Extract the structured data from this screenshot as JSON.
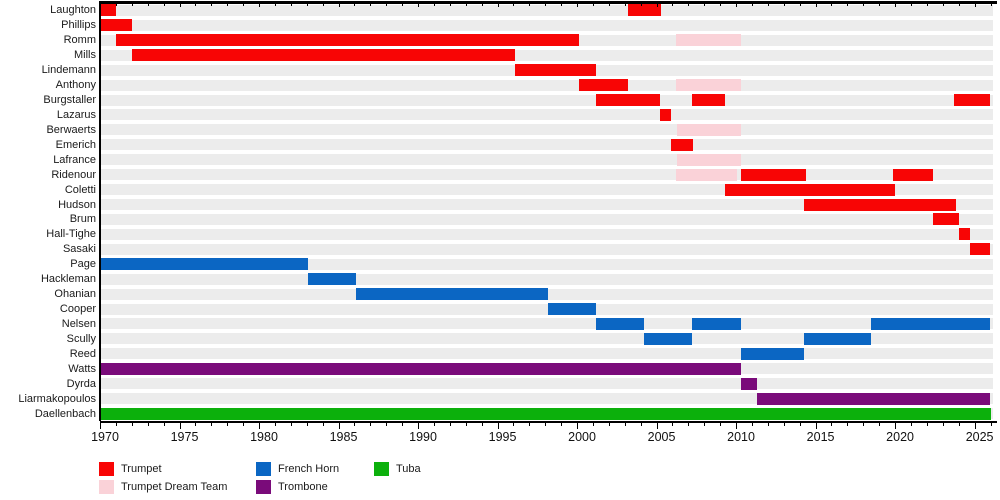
{
  "chart_data": {
    "type": "gantt-timeline",
    "description": "Brass quintet membership timeline by member and instrument",
    "x_axis": {
      "min": 1970,
      "max": 2026,
      "major_tick_step": 5,
      "minor_tick_step": 1,
      "tick_labels": [
        "1970",
        "1975",
        "1980",
        "1985",
        "1990",
        "1995",
        "2000",
        "2005",
        "2010",
        "2015",
        "2020",
        "2025"
      ],
      "grid": false
    },
    "colors": {
      "trumpet": "#f80505",
      "dream_team": "#fad2d8",
      "french_horn": "#0b66c3",
      "trombone": "#7a0b7a",
      "tuba": "#0cb00c"
    },
    "rows": [
      {
        "label": "Laughton",
        "segments": [
          {
            "start": 1970,
            "end": 1971,
            "role": "trumpet"
          },
          {
            "start": 2003.2,
            "end": 2005.3,
            "role": "trumpet"
          }
        ]
      },
      {
        "label": "Phillips",
        "segments": [
          {
            "start": 1970,
            "end": 1972,
            "role": "trumpet"
          }
        ]
      },
      {
        "label": "Romm",
        "segments": [
          {
            "start": 1971,
            "end": 2000.1,
            "role": "trumpet"
          },
          {
            "start": 2006.2,
            "end": 2010.3,
            "role": "dream_team"
          }
        ]
      },
      {
        "label": "Mills",
        "segments": [
          {
            "start": 1972,
            "end": 1996.1,
            "role": "trumpet"
          }
        ]
      },
      {
        "label": "Lindemann",
        "segments": [
          {
            "start": 1996.1,
            "end": 2001.2,
            "role": "trumpet"
          }
        ]
      },
      {
        "label": "Anthony",
        "segments": [
          {
            "start": 2000.1,
            "end": 2003.2,
            "role": "trumpet"
          },
          {
            "start": 2006.2,
            "end": 2010.3,
            "role": "dream_team"
          }
        ]
      },
      {
        "label": "Burgstaller",
        "segments": [
          {
            "start": 2001.2,
            "end": 2005.2,
            "role": "trumpet"
          },
          {
            "start": 2007.2,
            "end": 2009.3,
            "role": "trumpet"
          },
          {
            "start": 2023.7,
            "end": 2026,
            "role": "trumpet"
          }
        ]
      },
      {
        "label": "Lazarus",
        "segments": [
          {
            "start": 2005.2,
            "end": 2005.9,
            "role": "trumpet"
          }
        ]
      },
      {
        "label": "Berwaerts",
        "segments": [
          {
            "start": 2006.3,
            "end": 2010.3,
            "role": "dream_team"
          }
        ]
      },
      {
        "label": "Emerich",
        "segments": [
          {
            "start": 2005.9,
            "end": 2007.3,
            "role": "trumpet"
          }
        ]
      },
      {
        "label": "Lafrance",
        "segments": [
          {
            "start": 2006.3,
            "end": 2010.3,
            "role": "dream_team"
          }
        ]
      },
      {
        "label": "Ridenour",
        "segments": [
          {
            "start": 2006.2,
            "end": 2010.05,
            "role": "dream_team"
          },
          {
            "start": 2010.3,
            "end": 2014.4,
            "role": "trumpet"
          },
          {
            "start": 2019.9,
            "end": 2022.4,
            "role": "trumpet"
          }
        ]
      },
      {
        "label": "Coletti",
        "segments": [
          {
            "start": 2009.3,
            "end": 2020.0,
            "role": "trumpet"
          }
        ]
      },
      {
        "label": "Hudson",
        "segments": [
          {
            "start": 2014.3,
            "end": 2023.8,
            "role": "trumpet"
          }
        ]
      },
      {
        "label": "Brum",
        "segments": [
          {
            "start": 2022.4,
            "end": 2024.0,
            "role": "trumpet"
          }
        ]
      },
      {
        "label": "Hall-Tighe",
        "segments": [
          {
            "start": 2024.0,
            "end": 2024.7,
            "role": "trumpet"
          }
        ]
      },
      {
        "label": "Sasaki",
        "segments": [
          {
            "start": 2024.7,
            "end": 2026,
            "role": "trumpet"
          }
        ]
      },
      {
        "label": "Page",
        "segments": [
          {
            "start": 1970,
            "end": 1983.1,
            "role": "french_horn"
          }
        ]
      },
      {
        "label": "Hackleman",
        "segments": [
          {
            "start": 1983.1,
            "end": 1986.1,
            "role": "french_horn"
          }
        ]
      },
      {
        "label": "Ohanian",
        "segments": [
          {
            "start": 1986.1,
            "end": 1998.2,
            "role": "french_horn"
          }
        ]
      },
      {
        "label": "Cooper",
        "segments": [
          {
            "start": 1998.2,
            "end": 2001.2,
            "role": "french_horn"
          }
        ]
      },
      {
        "label": "Nelsen",
        "segments": [
          {
            "start": 2001.2,
            "end": 2004.2,
            "role": "french_horn"
          },
          {
            "start": 2007.2,
            "end": 2010.3,
            "role": "french_horn"
          },
          {
            "start": 2018.5,
            "end": 2026,
            "role": "french_horn"
          }
        ]
      },
      {
        "label": "Scully",
        "segments": [
          {
            "start": 2004.2,
            "end": 2007.2,
            "role": "french_horn"
          },
          {
            "start": 2014.3,
            "end": 2018.5,
            "role": "french_horn"
          }
        ]
      },
      {
        "label": "Reed",
        "segments": [
          {
            "start": 2010.3,
            "end": 2014.3,
            "role": "french_horn"
          }
        ]
      },
      {
        "label": "Watts",
        "segments": [
          {
            "start": 1970,
            "end": 2010.3,
            "role": "trombone"
          }
        ]
      },
      {
        "label": "Dyrda",
        "segments": [
          {
            "start": 2010.3,
            "end": 2011.3,
            "role": "trombone"
          }
        ]
      },
      {
        "label": "Liarmakopoulos",
        "segments": [
          {
            "start": 2011.3,
            "end": 2026,
            "role": "trombone"
          }
        ]
      },
      {
        "label": "Daellenbach",
        "segments": [
          {
            "start": 1970,
            "end": 2026,
            "role": "tuba"
          }
        ]
      }
    ],
    "legend": [
      {
        "label": "Trumpet",
        "role": "trumpet",
        "column": 0,
        "row": 0
      },
      {
        "label": "Trumpet Dream Team",
        "role": "dream_team",
        "column": 0,
        "row": 1
      },
      {
        "label": "French Horn",
        "role": "french_horn",
        "column": 1,
        "row": 0
      },
      {
        "label": "Trombone",
        "role": "trombone",
        "column": 1,
        "row": 1
      },
      {
        "label": "Tuba",
        "role": "tuba",
        "column": 2,
        "row": 0
      }
    ]
  }
}
